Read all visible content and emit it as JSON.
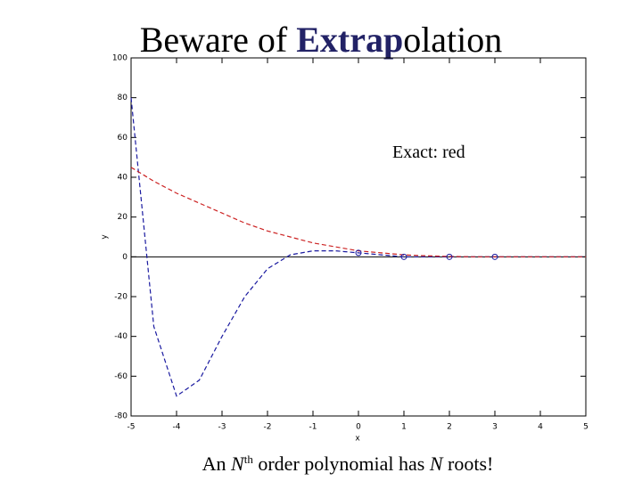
{
  "slide": {
    "title_parts": [
      "Beware of ",
      "Extrap",
      "olation"
    ],
    "caption_parts": [
      "An ",
      "N",
      "th",
      " order polynomial has ",
      "N",
      " roots!"
    ]
  },
  "chart_data": {
    "type": "line",
    "x_label": "x",
    "y_label": "y",
    "annotation": "Exact: red",
    "xlim": [
      -5,
      5
    ],
    "xticks": [
      -5,
      -4,
      -3,
      -2,
      -1,
      0,
      1,
      2,
      3,
      4,
      5
    ],
    "ylim": [
      -80,
      100
    ],
    "yticks": [
      -80,
      -60,
      -40,
      -20,
      0,
      20,
      40,
      60,
      80,
      100
    ],
    "grid": false,
    "zero_line": true,
    "x": [
      -5,
      -4.5,
      -4,
      -3.5,
      -3,
      -2.5,
      -2,
      -1.5,
      -1,
      -0.5,
      0,
      0.5,
      1,
      1.5,
      2,
      2.5,
      3,
      3.5,
      4,
      4.5,
      5
    ],
    "series": [
      {
        "color": "#1a1aa0",
        "dashed": true,
        "values": [
          80,
          -35,
          -70,
          -62,
          -40,
          -20,
          -6,
          1,
          3,
          3,
          2,
          1,
          0,
          0,
          0,
          0,
          0,
          0,
          0,
          0,
          0
        ]
      },
      {
        "color": "#cc2222",
        "dashed": true,
        "values": [
          45,
          38,
          32,
          27,
          22,
          17,
          13,
          10,
          7,
          5,
          3,
          2,
          1,
          0.5,
          0.2,
          0,
          0,
          0,
          0,
          0,
          0
        ]
      }
    ],
    "markers": {
      "color": "#1a1aa0",
      "x": [
        0,
        1,
        2,
        3
      ],
      "values": [
        2,
        0,
        0,
        0
      ]
    }
  }
}
